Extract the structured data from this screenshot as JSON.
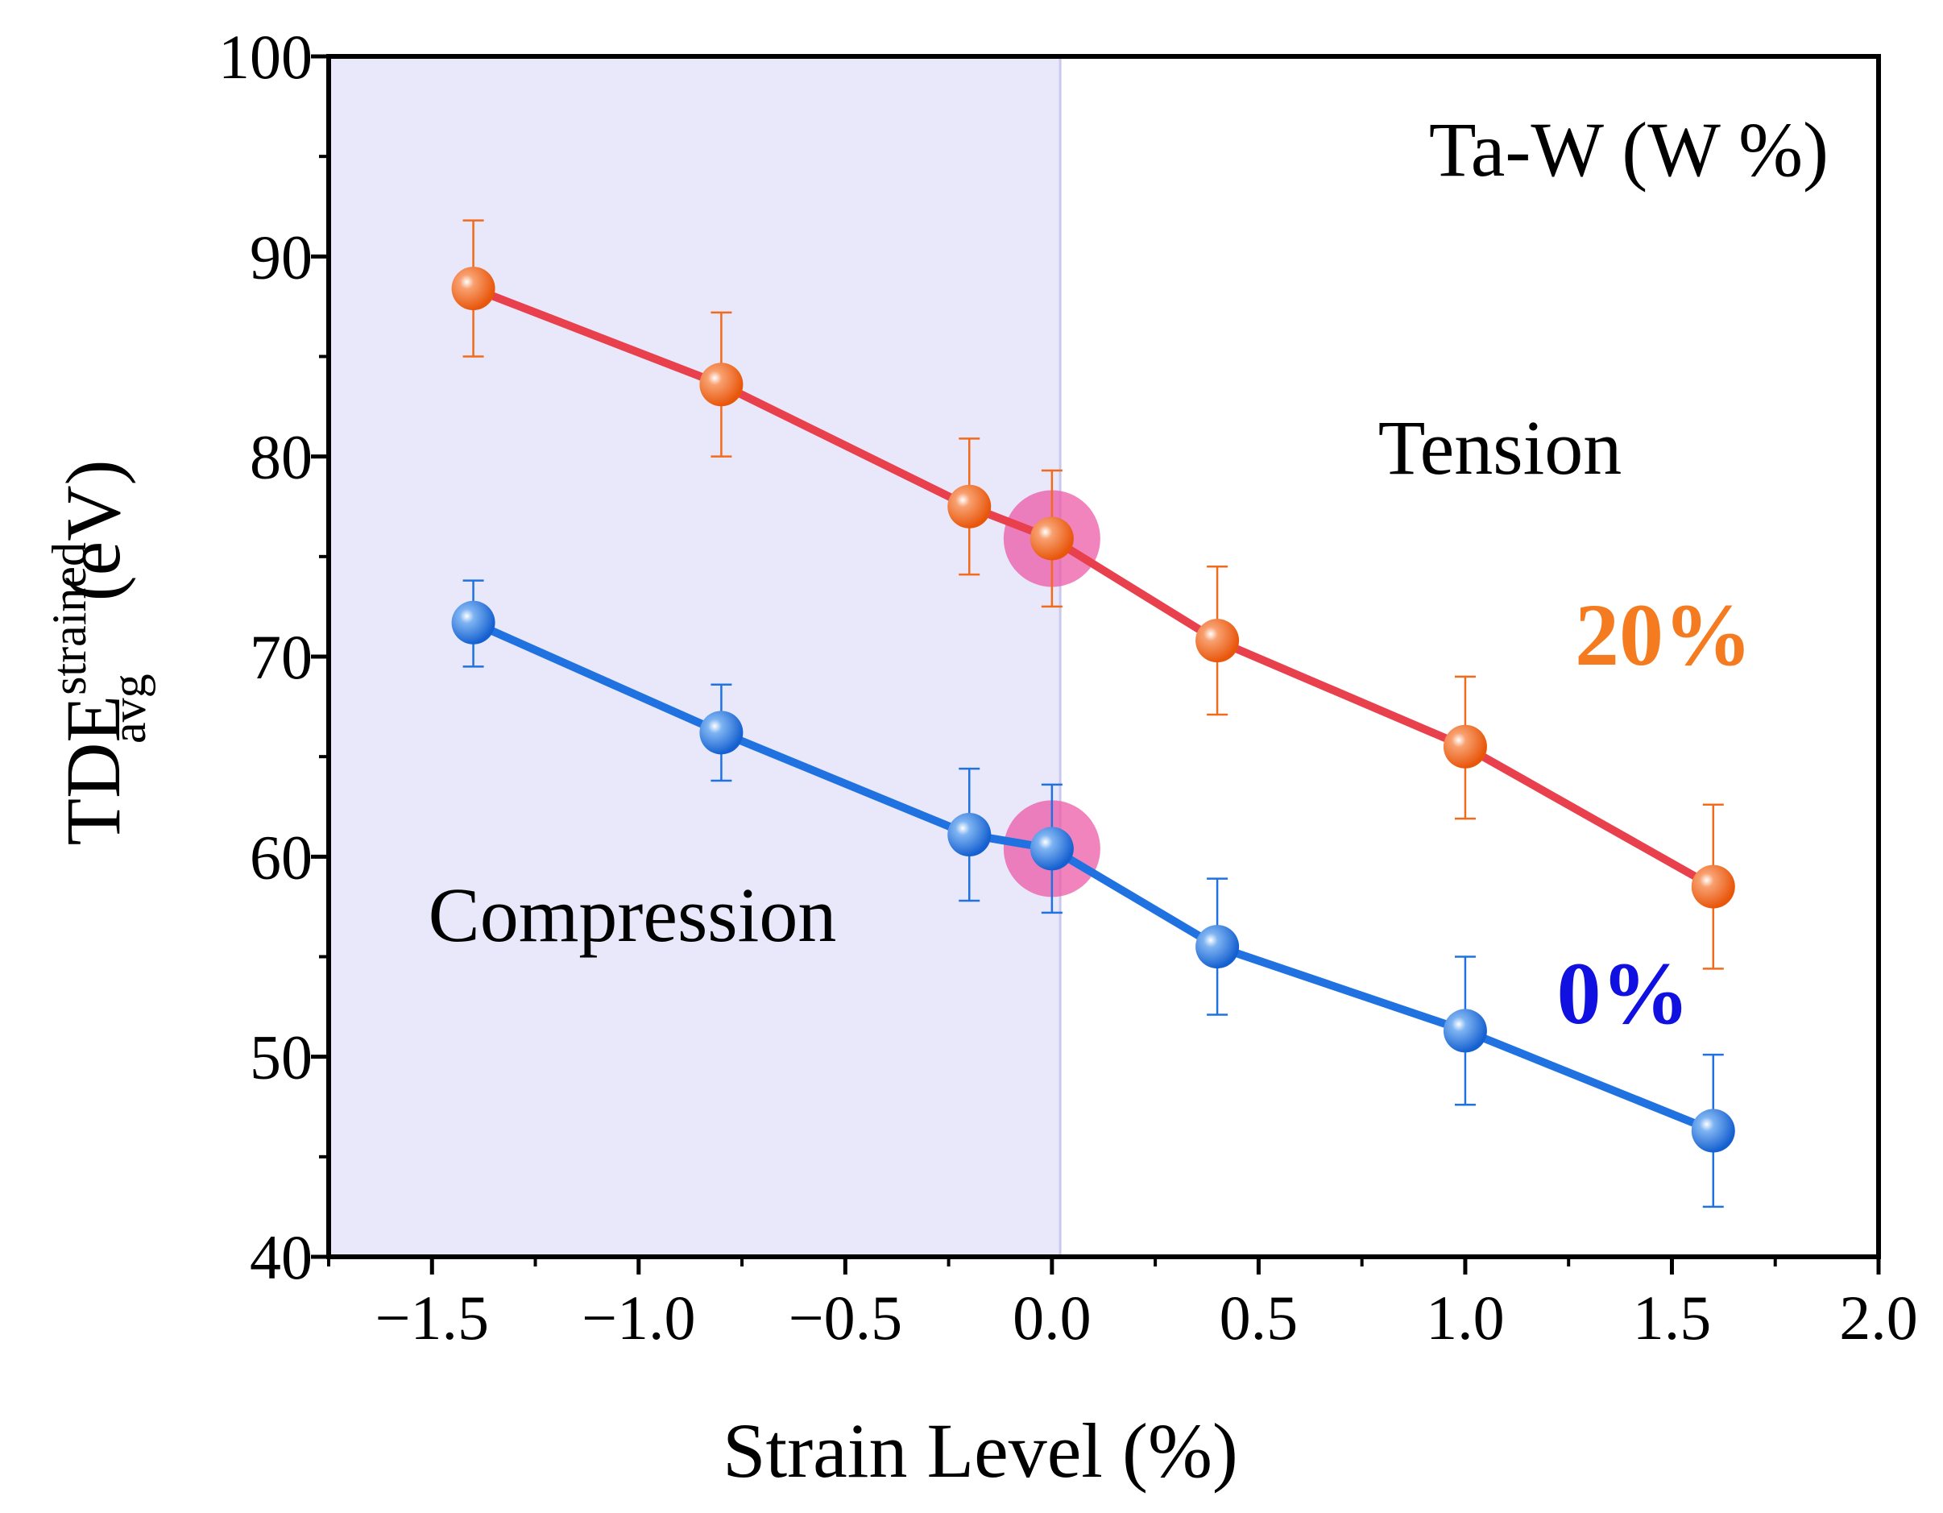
{
  "chart_data": {
    "type": "line",
    "xlabel": "Strain Level (%)",
    "ylabel_parts": {
      "base": "TDE",
      "sup": "strained",
      "sub": "avg",
      "unit": "(eV)"
    },
    "xlim": [
      -1.75,
      2.0
    ],
    "ylim": [
      40,
      100
    ],
    "x_ticks": [
      -1.5,
      -1.0,
      -0.5,
      0.0,
      0.5,
      1.0,
      1.5,
      2.0
    ],
    "x_tick_labels": [
      "−1.5",
      "−1.0",
      "−0.5",
      "0.0",
      "0.5",
      "1.0",
      "1.5",
      "2.0"
    ],
    "y_ticks": [
      40,
      50,
      60,
      70,
      80,
      90,
      100
    ],
    "y_tick_labels": [
      "40",
      "50",
      "60",
      "70",
      "80",
      "90",
      "100"
    ],
    "compression_region": [
      -1.75,
      0.02
    ],
    "annotations": {
      "legend_title": "Ta-W (W %)",
      "tension": "Tension",
      "compression": "Compression"
    },
    "highlight_x": 0.0,
    "x": [
      -1.4,
      -0.8,
      -0.2,
      0.0,
      0.4,
      1.0,
      1.6
    ],
    "series": [
      {
        "name": "20%",
        "line_color": "#e8404c",
        "marker_color": "#f26a1b",
        "label_color": "#f47b20",
        "values": [
          88.4,
          83.6,
          77.5,
          75.9,
          70.8,
          65.5,
          58.5
        ],
        "err_low": [
          85.0,
          80.0,
          74.1,
          72.5,
          67.1,
          61.9,
          54.4
        ],
        "err_high": [
          91.8,
          87.2,
          80.9,
          79.3,
          74.5,
          69.0,
          62.6
        ]
      },
      {
        "name": "0%",
        "line_color": "#1f72e0",
        "marker_color": "#1f72e0",
        "label_color": "#1010e0",
        "values": [
          71.7,
          66.2,
          61.1,
          60.4,
          55.5,
          51.3,
          46.3
        ],
        "err_low": [
          69.5,
          63.8,
          57.8,
          57.2,
          52.1,
          47.6,
          42.5
        ],
        "err_high": [
          73.8,
          68.6,
          64.4,
          63.6,
          58.9,
          55.0,
          50.1
        ]
      }
    ],
    "colors": {
      "compression_fill": "#e8e8fa",
      "highlight": "#ec5aa7",
      "axis": "#000000"
    }
  }
}
